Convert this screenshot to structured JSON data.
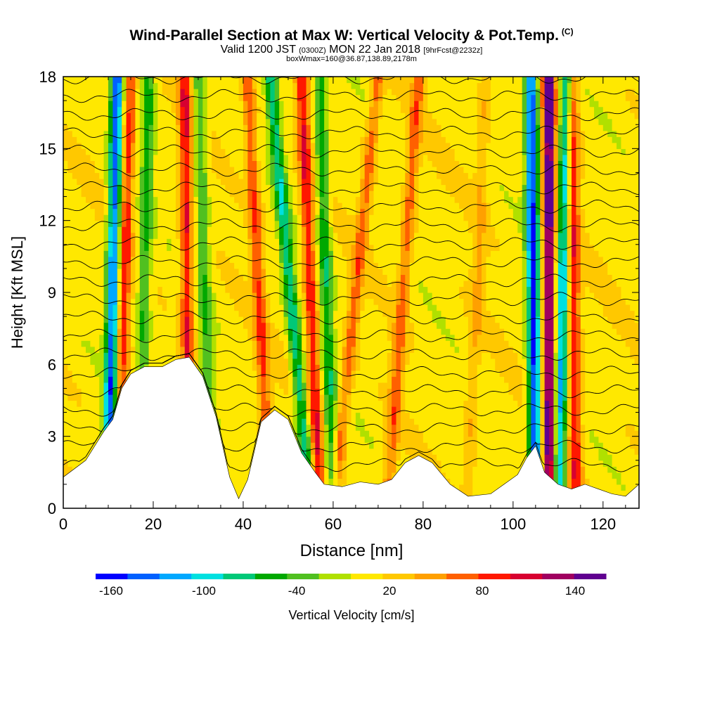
{
  "header": {
    "title": "Wind-Parallel Section at Max W: Vertical Velocity & Pot.Temp.",
    "copyright": "(C)",
    "valid_a": "Valid 1200 JST",
    "valid_b": "(0300Z)",
    "valid_c": "MON 22 Jan 2018",
    "valid_d": "[9hrFcst@2232z]",
    "box": "boxWmax=160@36.87,138.89,2178m"
  },
  "chart_data": {
    "type": "heatmap",
    "xlabel": "Distance [nm]",
    "ylabel": "Height [Kft MSL]",
    "xlim": [
      0,
      128
    ],
    "ylim": [
      0,
      18
    ],
    "x_ticks": [
      0,
      20,
      40,
      60,
      80,
      100,
      120
    ],
    "y_ticks": [
      0,
      3,
      6,
      9,
      12,
      15,
      18
    ],
    "colorbar": {
      "label": "Vertical Velocity [cm/s]",
      "range": [
        -170,
        160
      ],
      "tick_values": [
        -160,
        -100,
        -40,
        20,
        80,
        140
      ],
      "tick_labels": [
        "-160",
        "-100",
        "-40",
        "20",
        "80",
        "140"
      ],
      "colors": [
        "#0000ff",
        "#0060ff",
        "#00a8ff",
        "#00e0e0",
        "#00c878",
        "#00a800",
        "#50c020",
        "#b0e000",
        "#ffe800",
        "#ffc800",
        "#ffa000",
        "#ff6000",
        "#ff1800",
        "#d80030",
        "#a00060",
        "#600090"
      ]
    },
    "updraft_max_cm_s": 160,
    "downdraft_min_cm_s": -160,
    "streaks": [
      {
        "x_bottom": 12,
        "x_top": 15,
        "sign": 1,
        "amplitude": 80
      },
      {
        "x_bottom": 10,
        "x_top": 12,
        "sign": -1,
        "amplitude": 150
      },
      {
        "x_bottom": 17,
        "x_top": 19,
        "sign": -1,
        "amplitude": 60
      },
      {
        "x_bottom": 28,
        "x_top": 27,
        "sign": 1,
        "amplitude": 90
      },
      {
        "x_bottom": 33,
        "x_top": 30,
        "sign": -1,
        "amplitude": 50
      },
      {
        "x_bottom": 46,
        "x_top": 41,
        "sign": 1,
        "amplitude": 70
      },
      {
        "x_bottom": 55,
        "x_top": 46,
        "sign": -1,
        "amplitude": 90
      },
      {
        "x_bottom": 57,
        "x_top": 53,
        "sign": 1,
        "amplitude": 90
      },
      {
        "x_bottom": 60,
        "x_top": 57,
        "sign": -1,
        "amplitude": 70
      },
      {
        "x_bottom": 60,
        "x_top": 70,
        "sign": 1,
        "amplitude": 60
      },
      {
        "x_bottom": 72,
        "x_top": 79,
        "sign": 1,
        "amplitude": 60
      },
      {
        "x_bottom": 90,
        "x_top": 94,
        "sign": 1,
        "amplitude": 30
      },
      {
        "x_bottom": 105,
        "x_top": 104,
        "sign": -1,
        "amplitude": 160
      },
      {
        "x_bottom": 108,
        "x_top": 108,
        "sign": 1,
        "amplitude": 150
      },
      {
        "x_bottom": 110,
        "x_top": 112,
        "sign": -1,
        "amplitude": 120
      },
      {
        "x_bottom": 114,
        "x_top": 113,
        "sign": 1,
        "amplitude": 90
      }
    ],
    "terrain": [
      {
        "x": 0,
        "h": 1.3
      },
      {
        "x": 5,
        "h": 2.0
      },
      {
        "x": 9,
        "h": 3.2
      },
      {
        "x": 11,
        "h": 3.7
      },
      {
        "x": 13,
        "h": 5.0
      },
      {
        "x": 15,
        "h": 5.6
      },
      {
        "x": 18,
        "h": 5.9
      },
      {
        "x": 22,
        "h": 5.9
      },
      {
        "x": 25,
        "h": 6.2
      },
      {
        "x": 28,
        "h": 6.3
      },
      {
        "x": 31,
        "h": 5.5
      },
      {
        "x": 34,
        "h": 3.8
      },
      {
        "x": 37,
        "h": 1.3
      },
      {
        "x": 39,
        "h": 0.4
      },
      {
        "x": 41,
        "h": 1.2
      },
      {
        "x": 44,
        "h": 3.6
      },
      {
        "x": 47,
        "h": 4.1
      },
      {
        "x": 50,
        "h": 3.7
      },
      {
        "x": 53,
        "h": 2.3
      },
      {
        "x": 56,
        "h": 1.5
      },
      {
        "x": 58,
        "h": 1.0
      },
      {
        "x": 62,
        "h": 0.9
      },
      {
        "x": 66,
        "h": 1.1
      },
      {
        "x": 70,
        "h": 1.0
      },
      {
        "x": 73,
        "h": 1.2
      },
      {
        "x": 76,
        "h": 1.9
      },
      {
        "x": 79,
        "h": 2.2
      },
      {
        "x": 82,
        "h": 1.9
      },
      {
        "x": 86,
        "h": 1.0
      },
      {
        "x": 90,
        "h": 0.5
      },
      {
        "x": 95,
        "h": 0.6
      },
      {
        "x": 98,
        "h": 1.0
      },
      {
        "x": 101,
        "h": 1.4
      },
      {
        "x": 103,
        "h": 2.1
      },
      {
        "x": 105,
        "h": 2.6
      },
      {
        "x": 107,
        "h": 1.5
      },
      {
        "x": 110,
        "h": 1.0
      },
      {
        "x": 113,
        "h": 0.8
      },
      {
        "x": 116,
        "h": 1.0
      },
      {
        "x": 119,
        "h": 0.8
      },
      {
        "x": 122,
        "h": 0.6
      },
      {
        "x": 125,
        "h": 0.5
      },
      {
        "x": 128,
        "h": 1.0
      }
    ],
    "theta_contours": {
      "count": 22,
      "base_height": 1.8,
      "spacing": 0.77
    }
  }
}
